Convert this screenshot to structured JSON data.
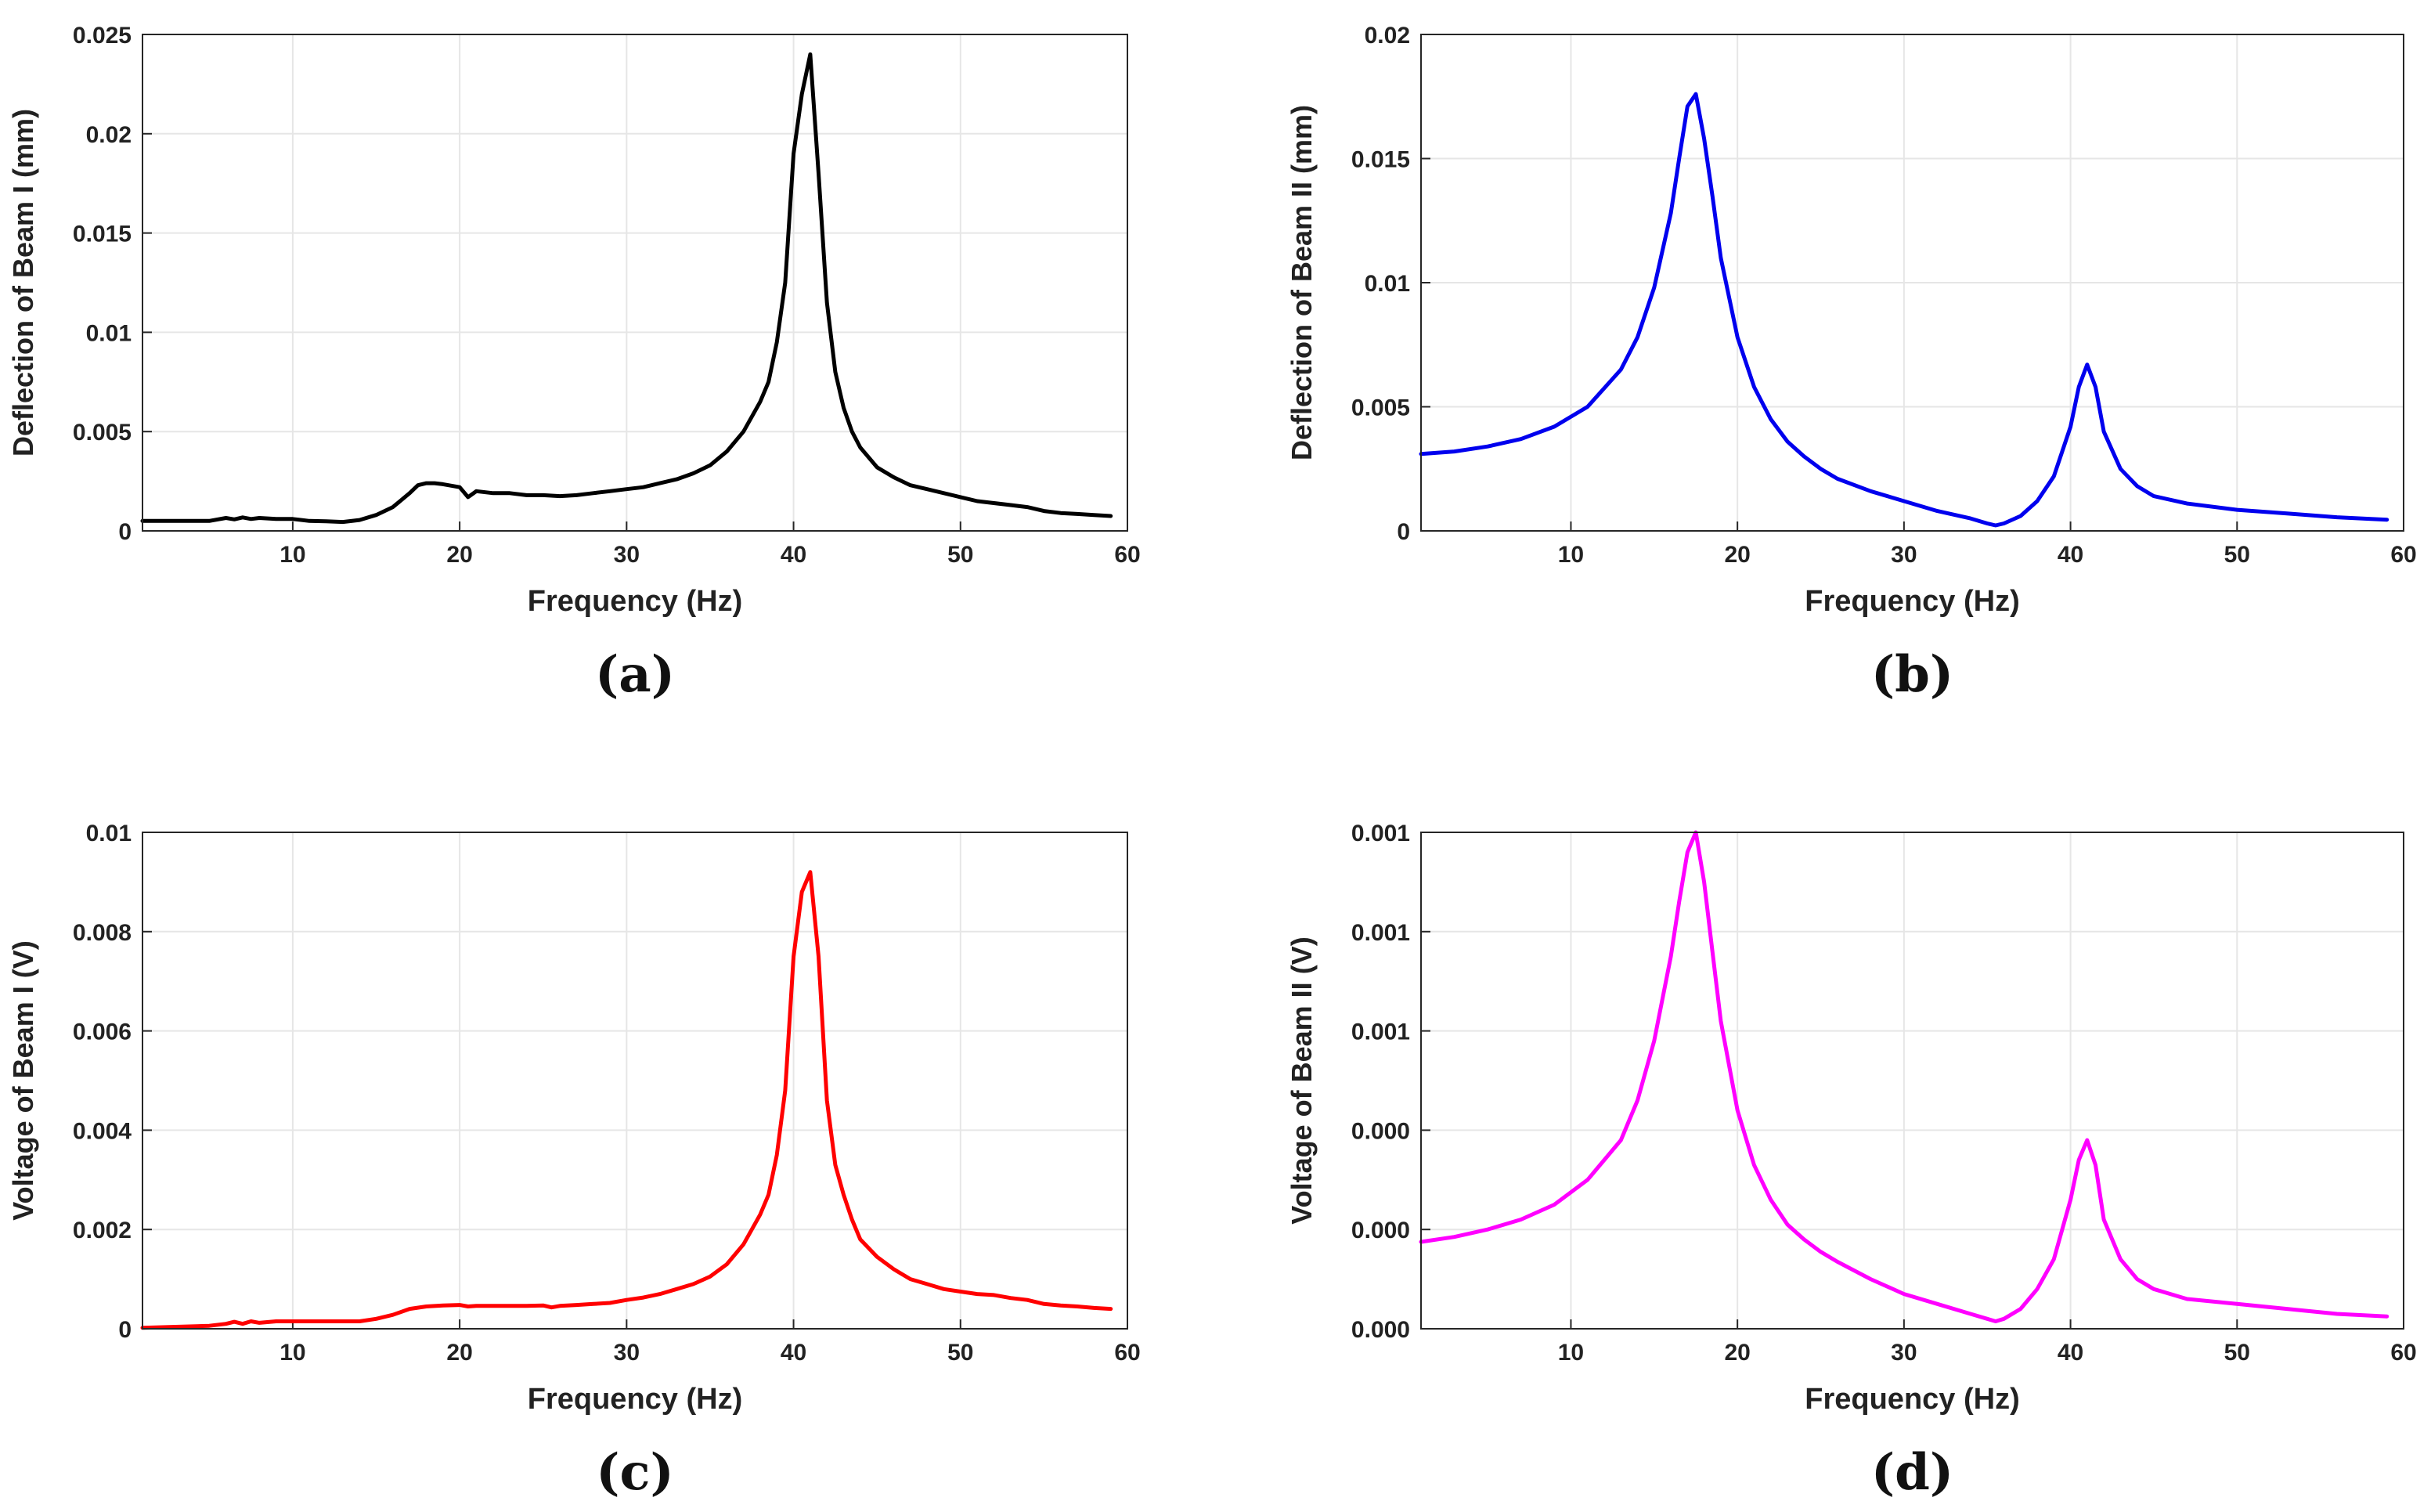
{
  "chart_data": [
    {
      "type": "line",
      "panel_label": "(a)",
      "xlabel": "Frequency (Hz)",
      "ylabel": "Deflection of Beam I (mm)",
      "xlim": [
        1,
        60
      ],
      "ylim": [
        0,
        0.025
      ],
      "xticks": [
        10,
        20,
        30,
        40,
        50,
        60
      ],
      "xtick_labels": [
        "10",
        "20",
        "30",
        "40",
        "50",
        "60"
      ],
      "yticks": [
        0,
        0.005,
        0.01,
        0.015,
        0.02,
        0.025
      ],
      "ytick_labels": [
        "0",
        "0.005",
        "0.01",
        "0.015",
        "0.02",
        "0.025"
      ],
      "grid": true,
      "color": "#000000",
      "series": [
        {
          "name": "Beam I deflection",
          "x": [
            1,
            3,
            5,
            6,
            6.5,
            7,
            7.5,
            8,
            9,
            10,
            11,
            12,
            13,
            14,
            15,
            16,
            17,
            17.5,
            18,
            18.5,
            19,
            20,
            20.5,
            21,
            22,
            23,
            24,
            25,
            26,
            27,
            28,
            29,
            30,
            31,
            32,
            33,
            34,
            35,
            36,
            37,
            38,
            38.5,
            39,
            39.5,
            40,
            40.5,
            41,
            41.5,
            42,
            42.5,
            43,
            43.5,
            44,
            45,
            46,
            47,
            48,
            49,
            50,
            51,
            52,
            53,
            54,
            55,
            56,
            57,
            58,
            59
          ],
          "y": [
            0.0005,
            0.0005,
            0.0005,
            0.00065,
            0.00058,
            0.00068,
            0.0006,
            0.00065,
            0.0006,
            0.0006,
            0.0005,
            0.00048,
            0.00045,
            0.00055,
            0.0008,
            0.0012,
            0.0019,
            0.0023,
            0.0024,
            0.0024,
            0.00235,
            0.0022,
            0.0017,
            0.002,
            0.0019,
            0.0019,
            0.0018,
            0.0018,
            0.00175,
            0.0018,
            0.0019,
            0.002,
            0.0021,
            0.0022,
            0.0024,
            0.0026,
            0.0029,
            0.0033,
            0.004,
            0.005,
            0.0065,
            0.0075,
            0.0095,
            0.0125,
            0.019,
            0.022,
            0.024,
            0.018,
            0.0115,
            0.008,
            0.0062,
            0.005,
            0.0042,
            0.0032,
            0.0027,
            0.0023,
            0.0021,
            0.0019,
            0.0017,
            0.0015,
            0.0014,
            0.0013,
            0.0012,
            0.001,
            0.0009,
            0.00085,
            0.0008,
            0.00075
          ]
        }
      ]
    },
    {
      "type": "line",
      "panel_label": "(b)",
      "xlabel": "Frequency (Hz)",
      "ylabel": "Deflection of Beam II (mm)",
      "xlim": [
        1,
        60
      ],
      "ylim": [
        0,
        0.02
      ],
      "xticks": [
        10,
        20,
        30,
        40,
        50,
        60
      ],
      "xtick_labels": [
        "10",
        "20",
        "30",
        "40",
        "50",
        "60"
      ],
      "yticks": [
        0,
        0.005,
        0.01,
        0.015,
        0.02
      ],
      "ytick_labels": [
        "0",
        "0.005",
        "0.01",
        "0.015",
        "0.02"
      ],
      "grid": true,
      "color": "#0000ee",
      "series": [
        {
          "name": "Beam II deflection",
          "x": [
            1,
            3,
            5,
            7,
            9,
            11,
            13,
            14,
            15,
            16,
            16.5,
            17,
            17.5,
            18,
            18.5,
            19,
            20,
            21,
            22,
            23,
            24,
            25,
            26,
            28,
            30,
            32,
            34,
            35,
            35.5,
            36,
            37,
            38,
            39,
            40,
            40.5,
            41,
            41.5,
            42,
            43,
            44,
            45,
            47,
            50,
            53,
            56,
            59
          ],
          "y": [
            0.0031,
            0.0032,
            0.0034,
            0.0037,
            0.0042,
            0.005,
            0.0065,
            0.0078,
            0.0098,
            0.0128,
            0.015,
            0.0171,
            0.0176,
            0.0158,
            0.0135,
            0.011,
            0.0078,
            0.0058,
            0.0045,
            0.0036,
            0.003,
            0.0025,
            0.0021,
            0.0016,
            0.0012,
            0.0008,
            0.0005,
            0.0003,
            0.00022,
            0.0003,
            0.0006,
            0.0012,
            0.0022,
            0.0042,
            0.0058,
            0.0067,
            0.0058,
            0.004,
            0.0025,
            0.0018,
            0.0014,
            0.0011,
            0.00085,
            0.0007,
            0.00055,
            0.00045
          ]
        }
      ]
    },
    {
      "type": "line",
      "panel_label": "(c)",
      "xlabel": "Frequency (Hz)",
      "ylabel": "Voltage of Beam I (V)",
      "xlim": [
        1,
        60
      ],
      "ylim": [
        0,
        0.01
      ],
      "xticks": [
        10,
        20,
        30,
        40,
        50,
        60
      ],
      "xtick_labels": [
        "10",
        "20",
        "30",
        "40",
        "50",
        "60"
      ],
      "yticks": [
        0,
        0.002,
        0.004,
        0.006,
        0.008,
        0.01
      ],
      "ytick_labels": [
        "0",
        "0.002",
        "0.004",
        "0.006",
        "0.008",
        "0.01"
      ],
      "grid": true,
      "color": "#ff0000",
      "series": [
        {
          "name": "Beam I voltage",
          "x": [
            1,
            3,
            5,
            6,
            6.5,
            7,
            7.5,
            8,
            9,
            10,
            12,
            14,
            15,
            16,
            17,
            18,
            19,
            20,
            20.5,
            21,
            22,
            23,
            24,
            25,
            25.5,
            26,
            27,
            28,
            29,
            30,
            31,
            32,
            33,
            34,
            35,
            36,
            37,
            38,
            38.5,
            39,
            39.5,
            40,
            40.5,
            41,
            41.5,
            42,
            42.5,
            43,
            43.5,
            44,
            45,
            46,
            47,
            48,
            49,
            50,
            51,
            52,
            53,
            54,
            55,
            56,
            57,
            58,
            59
          ],
          "y": [
            2e-05,
            4e-05,
            6e-05,
            0.0001,
            0.00014,
            0.0001,
            0.00015,
            0.00012,
            0.00015,
            0.00015,
            0.00015,
            0.00015,
            0.0002,
            0.00028,
            0.0004,
            0.00045,
            0.00047,
            0.00048,
            0.00045,
            0.00046,
            0.00046,
            0.00046,
            0.00046,
            0.00047,
            0.00043,
            0.00046,
            0.00048,
            0.0005,
            0.00052,
            0.00058,
            0.00063,
            0.0007,
            0.0008,
            0.0009,
            0.00105,
            0.0013,
            0.0017,
            0.0023,
            0.0027,
            0.0035,
            0.0048,
            0.0075,
            0.0088,
            0.0092,
            0.0075,
            0.0046,
            0.0033,
            0.0027,
            0.0022,
            0.0018,
            0.00145,
            0.0012,
            0.001,
            0.0009,
            0.0008,
            0.00075,
            0.0007,
            0.00068,
            0.00062,
            0.00058,
            0.0005,
            0.00047,
            0.00045,
            0.00042,
            0.0004
          ]
        }
      ]
    },
    {
      "type": "line",
      "panel_label": "(d)",
      "xlabel": "Frequency (Hz)",
      "ylabel": "Voltage of Beam II (V)",
      "xlim": [
        1,
        60
      ],
      "ylim": [
        0,
        0.001
      ],
      "xticks": [
        10,
        20,
        30,
        40,
        50,
        60
      ],
      "xtick_labels": [
        "10",
        "20",
        "30",
        "40",
        "50",
        "60"
      ],
      "yticks": [
        0,
        0.0002,
        0.0004,
        0.0006,
        0.0008,
        0.001
      ],
      "ytick_labels": [
        "0.000",
        "0.000",
        "0.000",
        "0.001",
        "0.001",
        "0.001"
      ],
      "grid": true,
      "color": "#ff00ff",
      "series": [
        {
          "name": "Beam II voltage",
          "x": [
            1,
            3,
            5,
            7,
            9,
            11,
            13,
            14,
            15,
            16,
            16.5,
            17,
            17.5,
            18,
            18.5,
            19,
            20,
            21,
            22,
            23,
            24,
            25,
            26,
            28,
            30,
            32,
            34,
            35,
            35.5,
            36,
            37,
            38,
            39,
            40,
            40.5,
            41,
            41.5,
            42,
            43,
            44,
            45,
            47,
            50,
            53,
            56,
            59
          ],
          "y": [
            0.000175,
            0.000185,
            0.0002,
            0.00022,
            0.00025,
            0.0003,
            0.00038,
            0.00046,
            0.00058,
            0.00075,
            0.00086,
            0.00096,
            0.001,
            0.0009,
            0.00076,
            0.00062,
            0.00044,
            0.00033,
            0.00026,
            0.00021,
            0.00018,
            0.000155,
            0.000135,
            0.0001,
            7e-05,
            5e-05,
            3e-05,
            2e-05,
            1.5e-05,
            2e-05,
            4e-05,
            8e-05,
            0.00014,
            0.00026,
            0.00034,
            0.00038,
            0.00033,
            0.00022,
            0.00014,
            0.0001,
            8e-05,
            6e-05,
            5e-05,
            4e-05,
            3e-05,
            2.5e-05
          ]
        }
      ]
    }
  ]
}
